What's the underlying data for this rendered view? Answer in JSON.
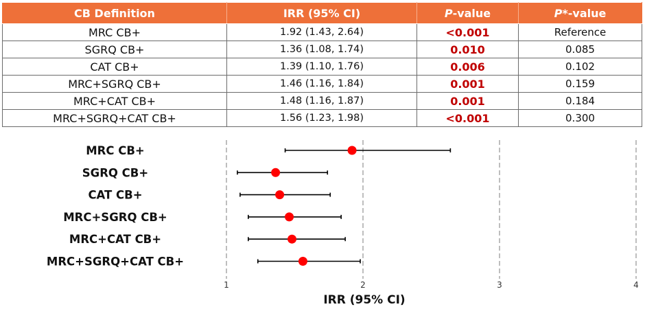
{
  "table": {
    "headers": {
      "definition": "CB Definition",
      "irr": "IRR (95% CI)",
      "p_italic": "P",
      "p_rest": "-value",
      "pstar_italic": "P*",
      "pstar_rest": "-value"
    },
    "rows": [
      {
        "definition": "MRC CB+",
        "irr": "1.92 (1.43, 2.64)",
        "p": "<0.001",
        "p_star": "Reference"
      },
      {
        "definition": "SGRQ CB+",
        "irr": "1.36 (1.08, 1.74)",
        "p": "0.010",
        "p_star": "0.085"
      },
      {
        "definition": "CAT CB+",
        "irr": "1.39 (1.10, 1.76)",
        "p": "0.006",
        "p_star": "0.102"
      },
      {
        "definition": "MRC+SGRQ CB+",
        "irr": "1.46 (1.16, 1.84)",
        "p": "0.001",
        "p_star": "0.159"
      },
      {
        "definition": "MRC+CAT CB+",
        "irr": "1.48 (1.16, 1.87)",
        "p": "0.001",
        "p_star": "0.184"
      },
      {
        "definition": "MRC+SGRQ+CAT CB+",
        "irr": "1.56 (1.23, 1.98)",
        "p": "<0.001",
        "p_star": "0.300"
      }
    ]
  },
  "colors": {
    "header_bg": "#ee7039",
    "significant": "#c00000",
    "point": "#ff0000",
    "whisker": "#000000",
    "gridline": "#9a9a9a"
  },
  "chart_data": {
    "type": "forest",
    "title": "",
    "xlabel": "IRR (95% CI)",
    "xlim": [
      1,
      4
    ],
    "xticks": [
      1,
      2,
      3,
      4
    ],
    "grid": "dashed vertical lines at ticks",
    "categories": [
      "MRC CB+",
      "SGRQ CB+",
      "CAT CB+",
      "MRC+SGRQ CB+",
      "MRC+CAT CB+",
      "MRC+SGRQ+CAT CB+"
    ],
    "estimate": [
      1.92,
      1.36,
      1.39,
      1.46,
      1.48,
      1.56
    ],
    "ci_low": [
      1.43,
      1.08,
      1.1,
      1.16,
      1.16,
      1.23
    ],
    "ci_high": [
      2.64,
      1.74,
      1.76,
      1.84,
      1.87,
      1.98
    ]
  }
}
